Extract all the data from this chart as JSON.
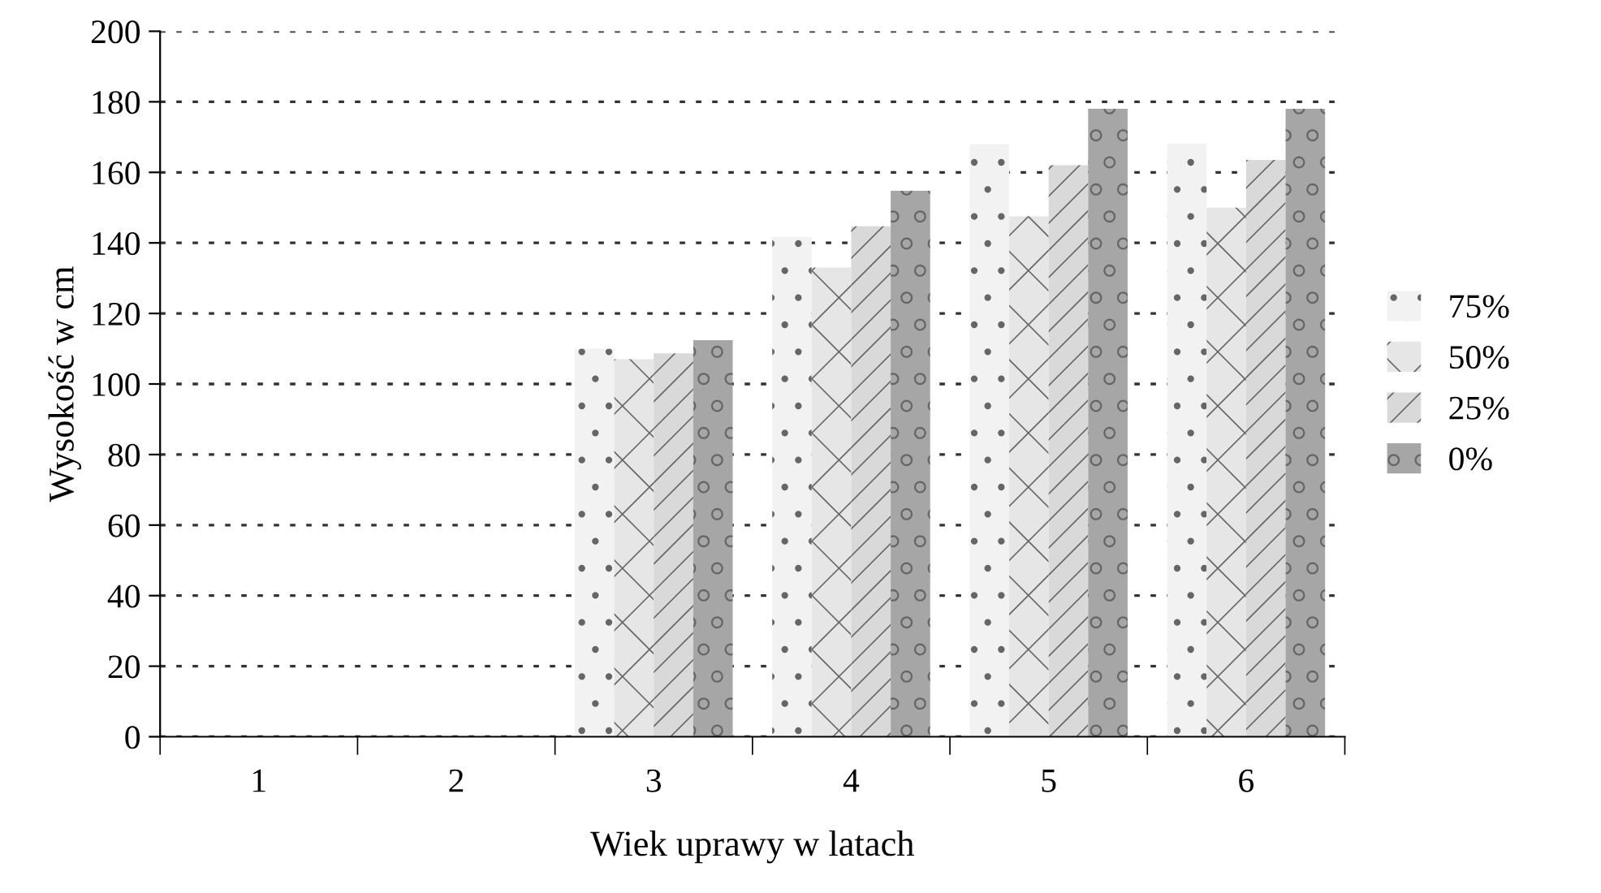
{
  "chart_data": {
    "type": "bar",
    "xlabel": "Wiek uprawy w latach",
    "ylabel": "Wysokość w cm",
    "categories": [
      "1",
      "2",
      "3",
      "4",
      "5",
      "6"
    ],
    "series": [
      {
        "name": "75%",
        "color": "#f2f2f2",
        "values": [
          null,
          null,
          110,
          141.7,
          168,
          168.2
        ]
      },
      {
        "name": "50%",
        "color": "#e6e6e6",
        "values": [
          null,
          null,
          107,
          133,
          147.5,
          150
        ]
      },
      {
        "name": "25%",
        "color": "#d9d9d9",
        "values": [
          null,
          null,
          108.7,
          144.7,
          162,
          163.5
        ]
      },
      {
        "name": "0%",
        "color": "#a6a6a6",
        "values": [
          null,
          null,
          112.4,
          154.8,
          178,
          178
        ]
      }
    ],
    "ylim": [
      0,
      200
    ],
    "yticks": [
      0,
      20,
      40,
      60,
      80,
      100,
      120,
      140,
      160,
      180,
      200
    ],
    "grid": "y",
    "legend": "right"
  }
}
